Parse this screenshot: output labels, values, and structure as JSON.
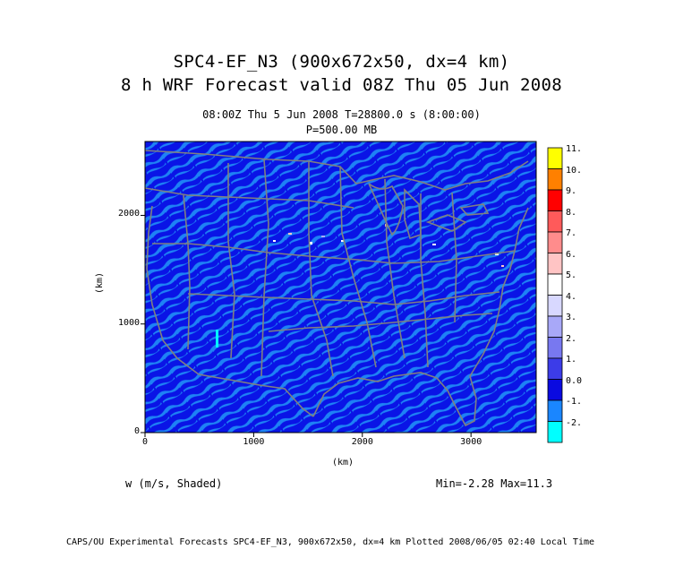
{
  "title": {
    "line1": "SPC4-EF_N3 (900x672x50, dx=4 km)",
    "line2": "8 h  WRF Forecast valid 08Z Thu 05 Jun 2008"
  },
  "subtitle": {
    "time": "08:00Z Thu   5 Jun 2008      T=28800.0 s (8:00:00)",
    "level": "P=500.00 MB"
  },
  "axes": {
    "x_label": "(km)",
    "y_label": "(km)",
    "x_ticks": [
      "0",
      "1000",
      "2000",
      "3000"
    ],
    "y_ticks": [
      "0",
      "1000",
      "2000"
    ]
  },
  "variable": "w (m/s, Shaded)",
  "stats": "Min=-2.28 Max=11.3",
  "colorbar": {
    "labels": [
      "11.",
      "10.",
      "9.",
      "8.",
      "7.",
      "6.",
      "5.",
      "4.",
      "3.",
      "2.",
      "1.",
      "0.0",
      "-1.",
      "-2."
    ],
    "colors": [
      "#ffff00",
      "#ff8000",
      "#ff0000",
      "#ff5a5a",
      "#ff8c8c",
      "#ffc4c4",
      "#ffffff",
      "#d8d8ff",
      "#a8a8f8",
      "#7878f0",
      "#3c3ce8",
      "#0a0ae0",
      "#1a86ff",
      "#00ffff"
    ]
  },
  "map": {
    "background_color": "#0a14e6",
    "field_color": "#1e82f5",
    "boundary_color": "#808080"
  },
  "footer": "CAPS/OU Experimental Forecasts  SPC4-EF_N3, 900x672x50, dx=4 km  Plotted 2008/06/05 02:40 Local Time"
}
